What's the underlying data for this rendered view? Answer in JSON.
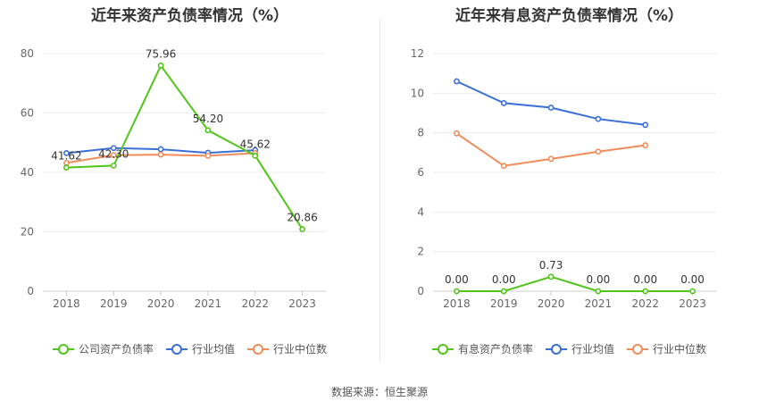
{
  "footer": {
    "source": "数据来源：恒生聚源"
  },
  "chart_data": [
    {
      "type": "line",
      "title": "近年来资产负债率情况（%）",
      "categories": [
        "2018",
        "2019",
        "2020",
        "2021",
        "2022",
        "2023"
      ],
      "ylim": [
        0,
        80
      ],
      "yticks": [
        0,
        20,
        40,
        60,
        80
      ],
      "grid": true,
      "legend_position": "bottom",
      "series": [
        {
          "name": "公司资产负债率",
          "color": "#52c41a",
          "values": [
            41.62,
            42.3,
            75.96,
            54.2,
            45.62,
            20.86
          ],
          "labels": [
            "41.62",
            "42.30",
            "75.96",
            "54.20",
            "45.62",
            "20.86"
          ]
        },
        {
          "name": "行业均值",
          "color": "#3a6fd8",
          "values": [
            46.5,
            48.2,
            47.8,
            46.6,
            47.5,
            null
          ]
        },
        {
          "name": "行业中位数",
          "color": "#f08c5a",
          "values": [
            43.2,
            45.8,
            46.0,
            45.6,
            46.5,
            null
          ]
        }
      ]
    },
    {
      "type": "line",
      "title": "近年来有息资产负债率情况（%）",
      "categories": [
        "2018",
        "2019",
        "2020",
        "2021",
        "2022",
        "2023"
      ],
      "ylim": [
        0,
        12
      ],
      "yticks": [
        0,
        2,
        4,
        6,
        8,
        10,
        12
      ],
      "grid": true,
      "legend_position": "bottom",
      "series": [
        {
          "name": "有息资产负债率",
          "color": "#52c41a",
          "values": [
            0.0,
            0.0,
            0.73,
            0.0,
            0.0,
            0.0
          ],
          "labels": [
            "0.00",
            "0.00",
            "0.73",
            "0.00",
            "0.00",
            "0.00"
          ]
        },
        {
          "name": "行业均值",
          "color": "#3a6fd8",
          "values": [
            10.6,
            9.5,
            9.27,
            8.7,
            8.4,
            null
          ]
        },
        {
          "name": "行业中位数",
          "color": "#f08c5a",
          "values": [
            7.97,
            6.33,
            6.68,
            7.05,
            7.37,
            null
          ]
        }
      ]
    }
  ]
}
